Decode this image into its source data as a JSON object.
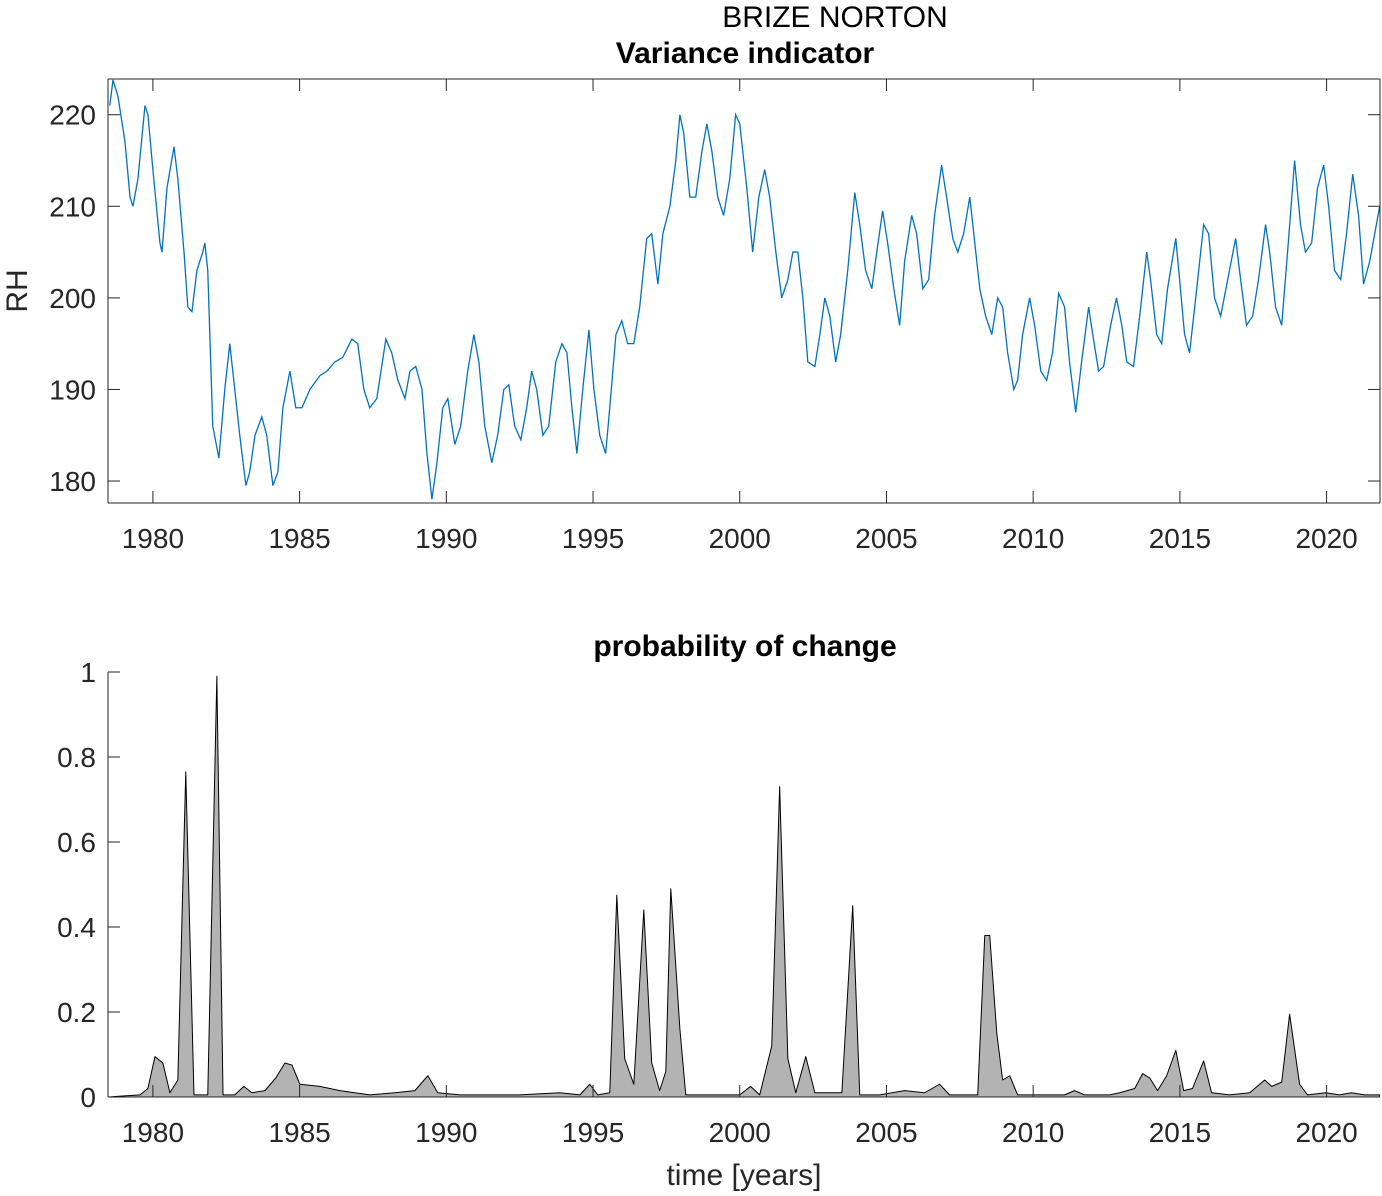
{
  "title": "BRIZE NORTON",
  "chart_data": [
    {
      "type": "line",
      "title": "Variance indicator",
      "ylabel": "RH",
      "color": "#0072bd",
      "box": true,
      "xlim": [
        1978.47,
        2021.82
      ],
      "ylim": [
        177.6,
        223.9
      ],
      "xticks": [
        1980,
        1985,
        1990,
        1995,
        2000,
        2005,
        2010,
        2015,
        2020
      ],
      "yticks": [
        180,
        190,
        200,
        210,
        220
      ],
      "x": [
        1978.53,
        1978.64,
        1978.81,
        1979.05,
        1979.22,
        1979.32,
        1979.49,
        1979.73,
        1979.83,
        1980.0,
        1980.24,
        1980.31,
        1980.48,
        1980.72,
        1980.85,
        1981.06,
        1981.19,
        1981.33,
        1981.5,
        1981.7,
        1981.77,
        1981.87,
        1982.04,
        1982.25,
        1982.45,
        1982.62,
        1982.79,
        1982.96,
        1983.17,
        1983.3,
        1983.48,
        1983.71,
        1983.88,
        1984.09,
        1984.26,
        1984.43,
        1984.67,
        1984.87,
        1985.08,
        1985.35,
        1985.69,
        1985.93,
        1986.2,
        1986.47,
        1986.78,
        1986.98,
        1987.19,
        1987.39,
        1987.63,
        1987.94,
        1988.14,
        1988.35,
        1988.59,
        1988.76,
        1988.96,
        1989.17,
        1989.34,
        1989.51,
        1989.68,
        1989.88,
        1990.05,
        1990.29,
        1990.49,
        1990.73,
        1990.94,
        1991.11,
        1991.31,
        1991.55,
        1991.75,
        1991.96,
        1992.13,
        1992.33,
        1992.54,
        1992.74,
        1992.91,
        1993.08,
        1993.29,
        1993.49,
        1993.73,
        1993.94,
        1994.11,
        1994.28,
        1994.45,
        1994.65,
        1994.86,
        1995.03,
        1995.23,
        1995.43,
        1995.57,
        1995.78,
        1995.98,
        1996.18,
        1996.39,
        1996.59,
        1996.83,
        1997.0,
        1997.21,
        1997.38,
        1997.62,
        1997.82,
        1997.96,
        1998.09,
        1998.3,
        1998.5,
        1998.71,
        1998.88,
        1999.05,
        1999.25,
        1999.45,
        1999.66,
        1999.86,
        2000.0,
        2000.24,
        2000.44,
        2000.65,
        2000.85,
        2001.02,
        2001.23,
        2001.43,
        2001.64,
        2001.81,
        2001.98,
        2002.15,
        2002.32,
        2002.56,
        2002.73,
        2002.9,
        2003.07,
        2003.27,
        2003.44,
        2003.68,
        2003.92,
        2004.09,
        2004.29,
        2004.5,
        2004.67,
        2004.87,
        2005.04,
        2005.25,
        2005.45,
        2005.62,
        2005.86,
        2006.03,
        2006.24,
        2006.44,
        2006.64,
        2006.88,
        2007.05,
        2007.26,
        2007.43,
        2007.63,
        2007.84,
        2008.01,
        2008.18,
        2008.38,
        2008.59,
        2008.79,
        2008.96,
        2009.13,
        2009.34,
        2009.47,
        2009.64,
        2009.88,
        2010.05,
        2010.26,
        2010.46,
        2010.66,
        2010.87,
        2011.07,
        2011.24,
        2011.45,
        2011.65,
        2011.89,
        2012.03,
        2012.23,
        2012.4,
        2012.64,
        2012.84,
        2013.02,
        2013.19,
        2013.42,
        2013.63,
        2013.87,
        2014.0,
        2014.21,
        2014.38,
        2014.58,
        2014.86,
        2014.99,
        2015.16,
        2015.33,
        2015.54,
        2015.81,
        2015.98,
        2016.18,
        2016.39,
        2016.63,
        2016.9,
        2017.07,
        2017.27,
        2017.48,
        2017.68,
        2017.92,
        2018.06,
        2018.26,
        2018.47,
        2018.67,
        2018.91,
        2019.11,
        2019.28,
        2019.49,
        2019.69,
        2019.9,
        2020.07,
        2020.27,
        2020.48,
        2020.68,
        2020.89,
        2021.09,
        2021.26,
        2021.47,
        2021.64,
        2021.81
      ],
      "values": [
        221,
        223.8,
        222,
        217,
        211,
        210,
        213,
        221,
        220,
        214,
        206,
        205,
        212,
        216.5,
        213,
        205,
        199,
        198.5,
        203,
        205,
        206,
        203,
        186,
        182.5,
        190,
        195,
        190,
        185,
        179.5,
        181,
        185,
        187,
        185,
        179.5,
        181,
        188,
        192,
        188,
        188,
        190,
        191.5,
        192,
        193,
        193.5,
        195.5,
        195,
        190,
        188,
        189,
        195.5,
        194,
        191,
        189,
        192,
        192.5,
        190,
        183,
        178,
        182,
        188,
        189,
        184,
        186,
        192,
        196,
        193,
        186,
        182,
        185,
        190,
        190.5,
        186,
        184.5,
        188,
        192,
        190,
        185,
        186,
        193,
        195,
        194,
        188,
        183,
        190,
        196.5,
        190,
        185,
        183,
        188,
        196,
        197.5,
        195,
        195,
        199,
        206.5,
        207,
        201.5,
        207,
        210,
        215,
        220,
        218,
        211,
        211,
        216,
        219,
        216,
        211,
        209,
        213,
        220,
        219,
        212,
        205,
        211,
        214,
        211,
        205,
        200,
        202,
        205,
        205,
        200,
        193,
        192.5,
        196,
        200,
        198,
        193,
        196,
        203,
        211.5,
        208,
        203,
        201,
        205,
        209.5,
        206,
        201,
        197,
        204,
        209,
        207,
        201,
        202,
        209,
        214.5,
        211,
        206.5,
        205,
        207,
        211,
        206,
        201,
        198,
        196,
        200,
        199,
        194,
        190,
        191,
        196,
        200,
        197,
        192,
        191,
        194,
        200.5,
        199,
        193,
        187.5,
        193,
        199,
        196,
        192,
        192.5,
        197,
        200,
        197,
        193,
        192.5,
        198,
        205,
        202,
        196,
        195,
        201,
        206.5,
        202,
        196,
        194,
        200,
        208,
        207,
        200,
        198,
        202,
        206.5,
        202,
        197,
        198,
        202,
        208,
        205,
        199,
        197,
        205,
        215,
        208,
        205,
        206,
        212,
        214.5,
        210,
        203,
        202,
        207,
        213.5,
        209,
        201.5,
        204,
        207,
        210
      ]
    },
    {
      "type": "area",
      "title": "probability of change",
      "xlabel": "time [years]",
      "color": "#b3b3b3",
      "edge_color": "#000000",
      "box": false,
      "xlim": [
        1978.47,
        2021.82
      ],
      "ylim": [
        0,
        1
      ],
      "xticks": [
        1980,
        1985,
        1990,
        1995,
        2000,
        2005,
        2010,
        2015,
        2020
      ],
      "yticks": [
        0,
        0.2,
        0.4,
        0.6,
        0.8,
        1
      ],
      "x": [
        1978.47,
        1979.56,
        1979.83,
        1980.07,
        1980.34,
        1980.58,
        1980.85,
        1981.12,
        1981.4,
        1981.87,
        1982.18,
        1982.39,
        1982.79,
        1983.1,
        1983.37,
        1983.82,
        1984.19,
        1984.5,
        1984.74,
        1985.01,
        1985.69,
        1986.37,
        1986.88,
        1987.39,
        1988.25,
        1988.93,
        1989.37,
        1989.71,
        1990.46,
        1991.48,
        1992.5,
        1993.87,
        1994.55,
        1994.89,
        1995.16,
        1995.57,
        1995.81,
        1996.08,
        1996.39,
        1996.73,
        1997.0,
        1997.27,
        1997.48,
        1997.65,
        1997.96,
        1998.16,
        1999.32,
        2000.0,
        2000.37,
        2000.68,
        2001.09,
        2001.36,
        2001.64,
        2001.91,
        2002.25,
        2002.56,
        2003.48,
        2003.85,
        2004.09,
        2004.77,
        2005.62,
        2006.3,
        2006.81,
        2007.15,
        2008.11,
        2008.35,
        2008.52,
        2008.76,
        2008.96,
        2009.2,
        2009.47,
        2010.22,
        2011.07,
        2011.41,
        2011.75,
        2012.61,
        2012.95,
        2013.46,
        2013.73,
        2013.97,
        2014.24,
        2014.55,
        2014.86,
        2015.13,
        2015.43,
        2015.81,
        2016.08,
        2016.7,
        2017.38,
        2017.89,
        2018.13,
        2018.47,
        2018.74,
        2019.08,
        2019.35,
        2019.97,
        2020.44,
        2020.85,
        2021.29,
        2021.81
      ],
      "values": [
        0,
        0.005,
        0.02,
        0.095,
        0.08,
        0.01,
        0.04,
        0.765,
        0.005,
        0.005,
        0.99,
        0.005,
        0.005,
        0.025,
        0.01,
        0.015,
        0.045,
        0.08,
        0.075,
        0.03,
        0.025,
        0.015,
        0.01,
        0.005,
        0.01,
        0.015,
        0.05,
        0.01,
        0.005,
        0.005,
        0.005,
        0.01,
        0.005,
        0.03,
        0.005,
        0.01,
        0.475,
        0.09,
        0.03,
        0.44,
        0.08,
        0.015,
        0.06,
        0.49,
        0.16,
        0.005,
        0.005,
        0.005,
        0.025,
        0.005,
        0.12,
        0.73,
        0.09,
        0.01,
        0.095,
        0.01,
        0.01,
        0.45,
        0.005,
        0.005,
        0.015,
        0.01,
        0.03,
        0.005,
        0.005,
        0.38,
        0.38,
        0.15,
        0.04,
        0.05,
        0.005,
        0.005,
        0.005,
        0.015,
        0.005,
        0.005,
        0.01,
        0.02,
        0.055,
        0.045,
        0.015,
        0.05,
        0.11,
        0.015,
        0.02,
        0.085,
        0.01,
        0.005,
        0.01,
        0.04,
        0.025,
        0.035,
        0.195,
        0.03,
        0.005,
        0.01,
        0.005,
        0.01,
        0.005,
        0.005
      ]
    }
  ]
}
